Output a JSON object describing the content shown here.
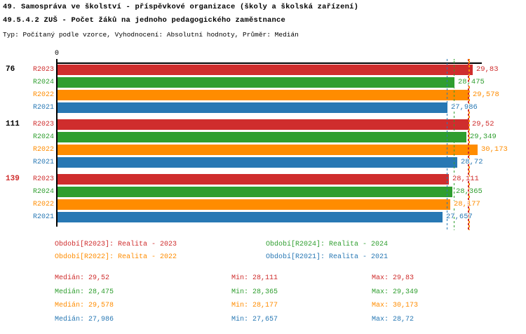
{
  "header": {
    "title": "49. Samospráva ve školství - příspěvkové organizace (školy a školská zařízení)",
    "subtitle": "49.5.4.2 ZUŠ - Počet žáků na jednoho pedagogického zaměstnance",
    "meta": "Typ: Počítaný podle vzorce, Vyhodnocení: Absolutní hodnoty, Průměr: Medián"
  },
  "colors": {
    "R2023": "#cf2d2d",
    "R2024": "#2f9e2f",
    "R2022": "#ff8c00",
    "R2021": "#2878b4",
    "axis": "#000000",
    "group_label_default": "#000000"
  },
  "chart_data": {
    "type": "bar",
    "orientation": "horizontal",
    "title": "49.5.4.2 ZUŠ - Počet žáků na jednoho pedagogického zaměstnance",
    "xlabel": "",
    "ylabel": "",
    "zero_label": "0",
    "xlim": [
      0,
      30.51
    ],
    "grid": false,
    "legend_position": "bottom",
    "series_order": [
      "R2023",
      "R2024",
      "R2022",
      "R2021"
    ],
    "groups": [
      {
        "label": "76",
        "label_color": "#000000",
        "bars": [
          {
            "series": "R2023",
            "value": 29.83,
            "display": "29,83"
          },
          {
            "series": "R2024",
            "value": 28.475,
            "display": "28,475"
          },
          {
            "series": "R2022",
            "value": 29.578,
            "display": "29,578"
          },
          {
            "series": "R2021",
            "value": 27.986,
            "display": "27,986"
          }
        ]
      },
      {
        "label": "111",
        "label_color": "#000000",
        "bars": [
          {
            "series": "R2023",
            "value": 29.52,
            "display": "29,52"
          },
          {
            "series": "R2024",
            "value": 29.349,
            "display": "29,349"
          },
          {
            "series": "R2022",
            "value": 30.173,
            "display": "30,173"
          },
          {
            "series": "R2021",
            "value": 28.72,
            "display": "28,72"
          }
        ]
      },
      {
        "label": "139",
        "label_color": "#cf2d2d",
        "bars": [
          {
            "series": "R2023",
            "value": 28.111,
            "display": "28,111"
          },
          {
            "series": "R2024",
            "value": 28.365,
            "display": "28,365"
          },
          {
            "series": "R2022",
            "value": 28.177,
            "display": "28,177"
          },
          {
            "series": "R2021",
            "value": 27.657,
            "display": "27,657"
          }
        ]
      }
    ],
    "median_lines": [
      {
        "series": "R2021",
        "value": 27.986
      },
      {
        "series": "R2024",
        "value": 28.475
      },
      {
        "series": "R2023",
        "value": 29.52
      },
      {
        "series": "R2022",
        "value": 29.578
      }
    ]
  },
  "legend": {
    "items": [
      {
        "series": "R2023",
        "label": "Období[R2023]: Realita - 2023"
      },
      {
        "series": "R2024",
        "label": "Období[R2024]: Realita - 2024"
      },
      {
        "series": "R2022",
        "label": "Období[R2022]: Realita - 2022"
      },
      {
        "series": "R2021",
        "label": "Období[R2021]: Realita - 2021"
      }
    ]
  },
  "stats": {
    "rows": [
      {
        "series": "R2023",
        "median": "Medián: 29,52",
        "min": "Min: 28,111",
        "max": "Max: 29,83"
      },
      {
        "series": "R2024",
        "median": "Medián: 28,475",
        "min": "Min: 28,365",
        "max": "Max: 29,349"
      },
      {
        "series": "R2022",
        "median": "Medián: 29,578",
        "min": "Min: 28,177",
        "max": "Max: 30,173"
      },
      {
        "series": "R2021",
        "median": "Medián: 27,986",
        "min": "Min: 27,657",
        "max": "Max: 28,72"
      }
    ]
  }
}
